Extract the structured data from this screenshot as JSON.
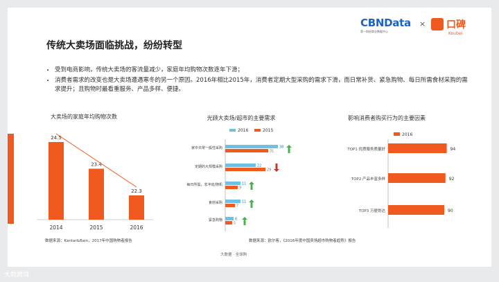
{
  "brand": {
    "cbn": "CBNData",
    "cbn_sub": "第一财经商业数据中心",
    "x": "×",
    "koubei_cn": "口碑",
    "koubei_en": "Koubei"
  },
  "title": "传统大卖场面临挑战，纷纷转型",
  "bullets": [
    "受到电商影响，传统大卖场的客流量减少，家庭年均购物次数逐年下滑；",
    "消费者需求的改变也是大卖场遭遇寒冬的另一个原因。2016年相比2015年，消费者定期大型采购的需求下滑，而日常补货、紧急购物、每日所需食材采购的需求提升；且购物时最看重服务、产品多样、便捷。"
  ],
  "footer": "大数据 · 全球购",
  "corner": "大数跨境",
  "colors": {
    "orange": "#f05a1e",
    "blue": "#6cc1e4",
    "green": "#4caf50",
    "darkred": "#c0392b"
  },
  "chart_data": [
    {
      "type": "bar",
      "title": "大卖场的家庭年均购物次数",
      "categories": [
        "2014",
        "2015",
        "2016"
      ],
      "values": [
        24.5,
        23.4,
        22.3
      ],
      "ylim": [
        21.3,
        24.9
      ],
      "trend_line": true,
      "source": "数据来源：Kantar&Bain，2017年中国购物者报告"
    },
    {
      "type": "bar",
      "title": "光顾大卖场/超市的主要需求",
      "categories": [
        "家中日常一般性采购",
        "定期的大规模采购",
        "每日所需，非冲动/随机",
        "食材采购",
        "紧急购物"
      ],
      "series": [
        {
          "name": "2016",
          "values": [
            38,
            22,
            11,
            11,
            6
          ]
        },
        {
          "name": "2015",
          "values": [
            31,
            29,
            9,
            7,
            5
          ]
        }
      ],
      "change": [
        "up",
        "down",
        "up",
        "up",
        "up"
      ],
      "source": "数据来源：欧尔客，《2016年度中国卖场超市购物者趋势》报告"
    },
    {
      "type": "bar",
      "title": "影响消费者购买行为的主要因素",
      "categories": [
        "TOP1 优质服务质量好",
        "TOP2 产品丰富多样",
        "TOP3 万便划达"
      ],
      "series": [
        {
          "name": "2016",
          "values": [
            94,
            92,
            90
          ]
        }
      ]
    }
  ]
}
